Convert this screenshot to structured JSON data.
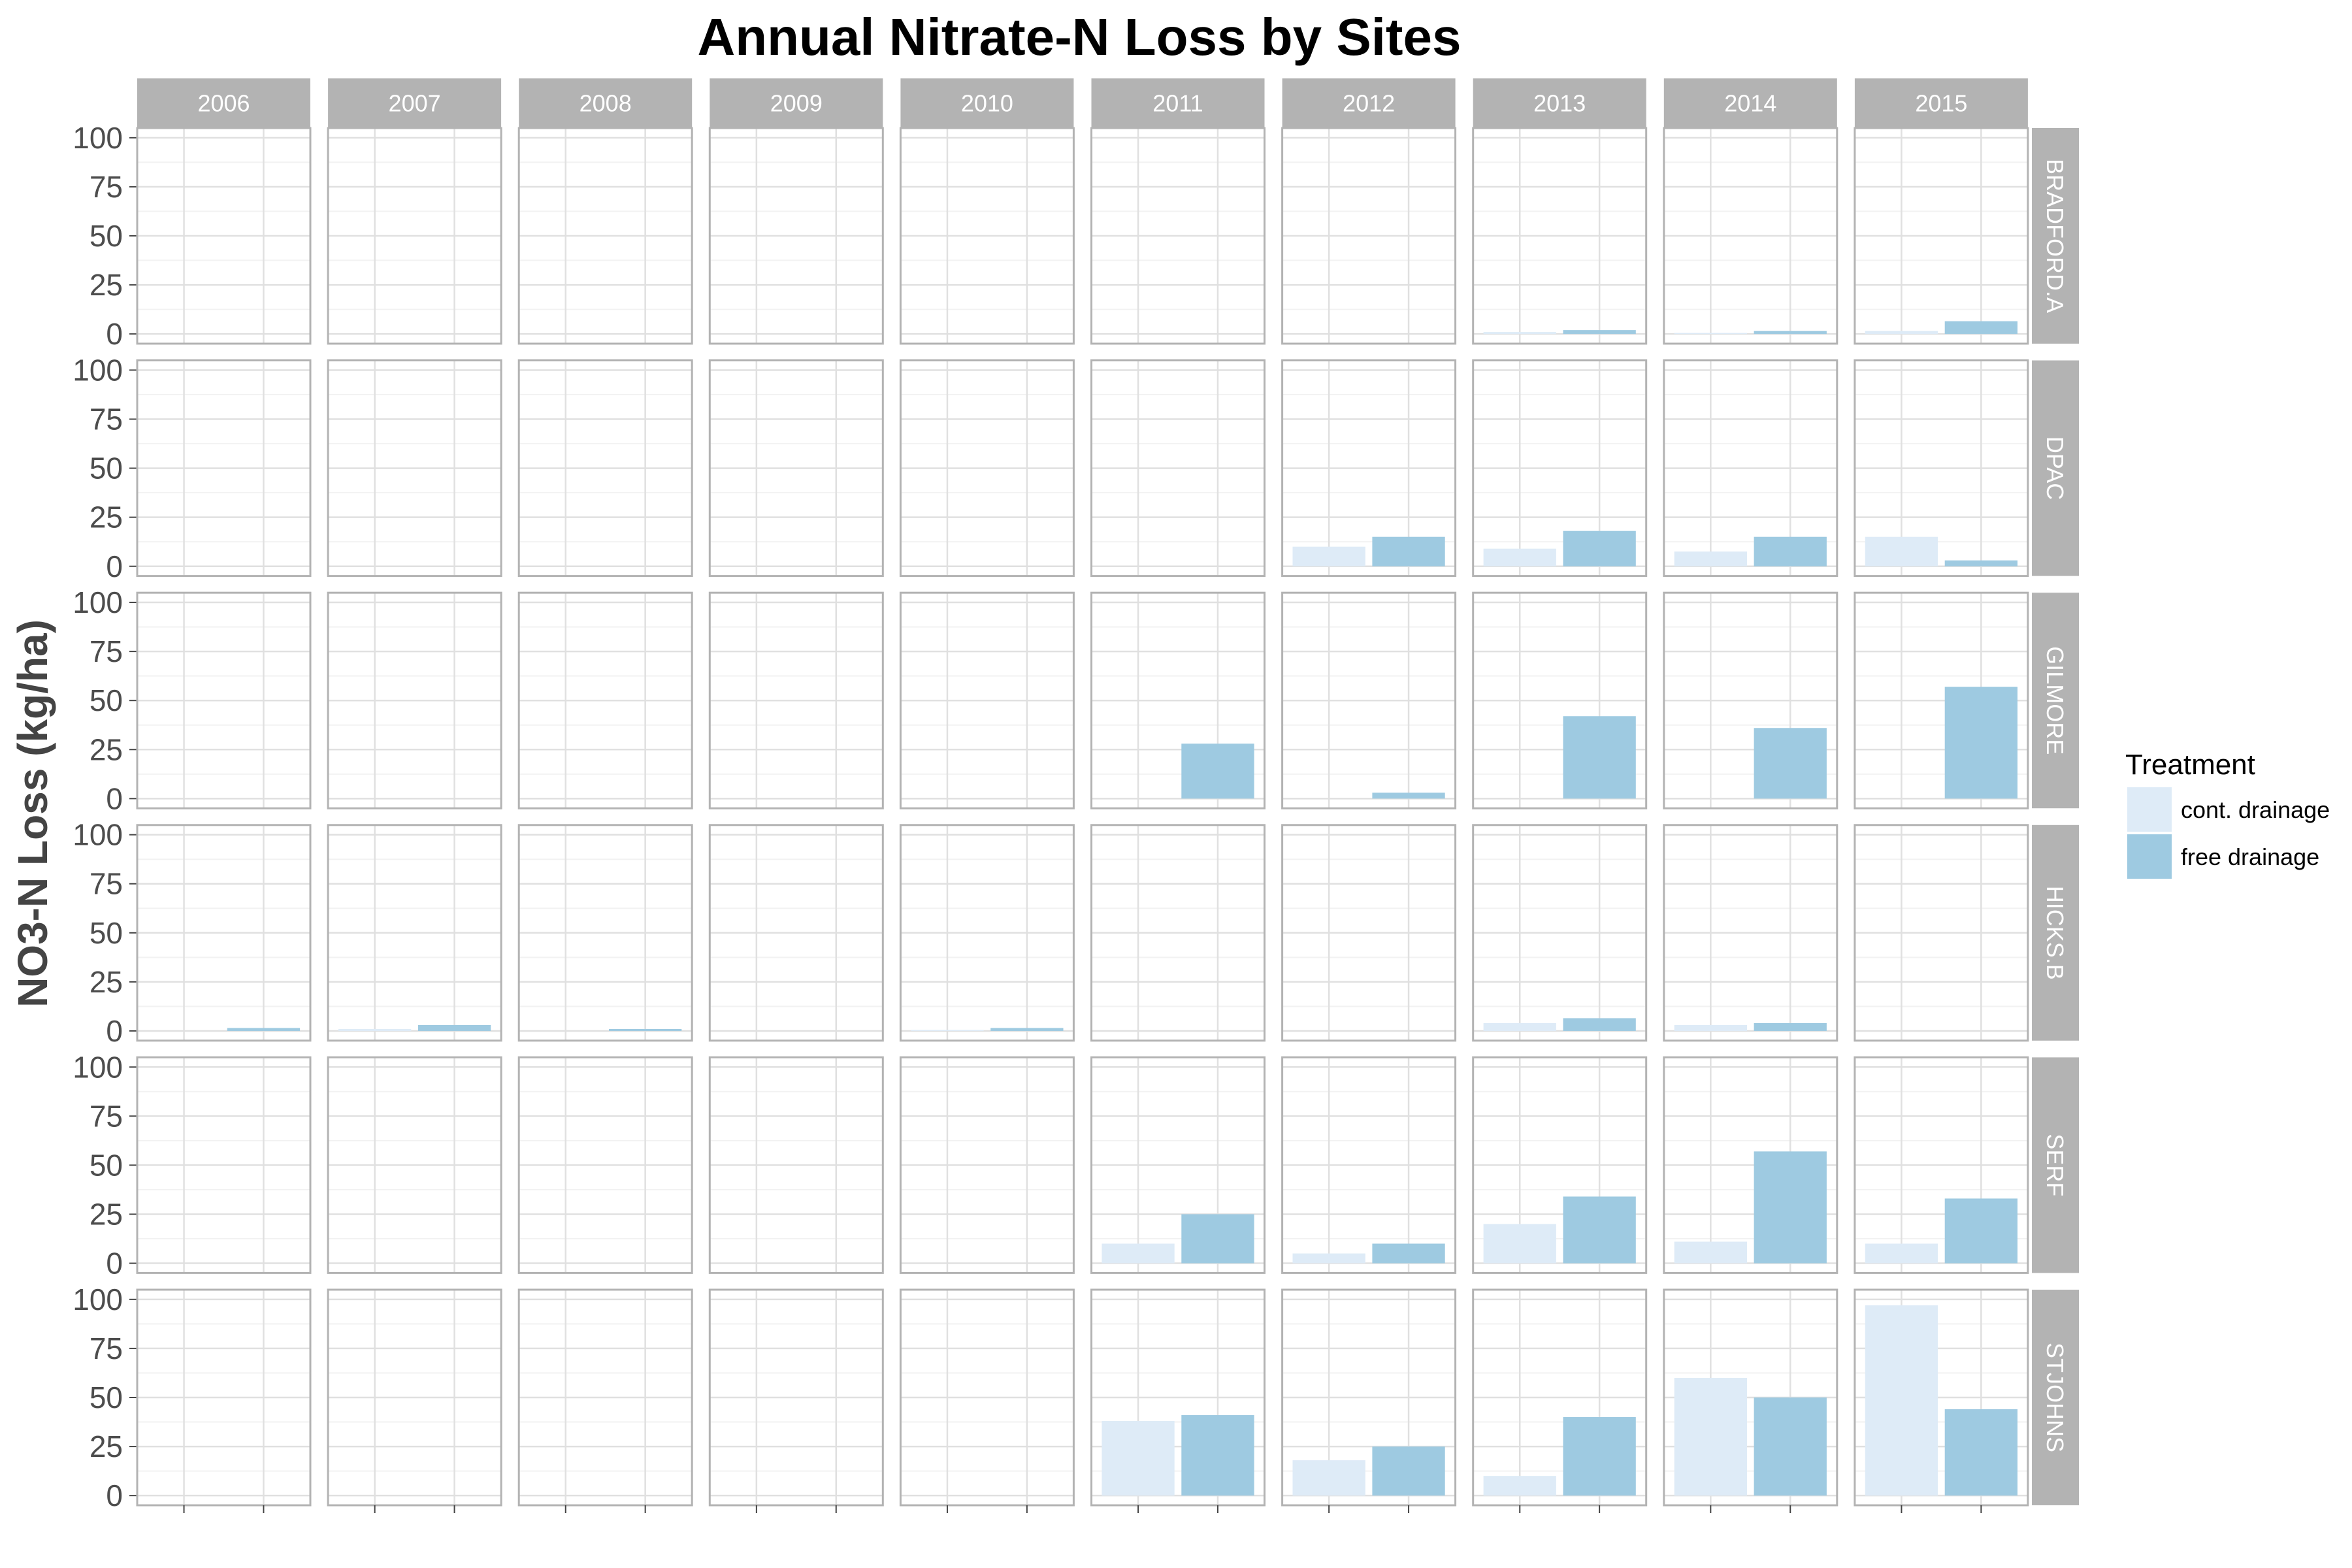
{
  "chart_data": {
    "type": "bar",
    "title": "Annual Nitrate-N Loss by Sites",
    "xlabel": "",
    "ylabel": "NO3-N Loss (kg/ha)",
    "ylim": [
      0,
      100
    ],
    "yticks": [
      "0",
      "25",
      "50",
      "75",
      "100"
    ],
    "grid": true,
    "legend_position": "right",
    "facet_columns": [
      "2006",
      "2007",
      "2008",
      "2009",
      "2010",
      "2011",
      "2012",
      "2013",
      "2014",
      "2015"
    ],
    "facet_rows": [
      "BRADFORD.A",
      "DPAC",
      "GILMORE",
      "HICKS.B",
      "SERF",
      "STJOHNS"
    ],
    "legend": {
      "title": "Treatment",
      "entries": [
        "cont. drainage",
        "free drainage"
      ],
      "colors": [
        "#deebf7",
        "#9ecae1"
      ]
    },
    "data": {
      "BRADFORD.A": [
        [
          null,
          null
        ],
        [
          null,
          null
        ],
        [
          null,
          null
        ],
        [
          null,
          null
        ],
        [
          null,
          null
        ],
        [
          null,
          null
        ],
        [
          null,
          null
        ],
        [
          1,
          2
        ],
        [
          0.5,
          1.5
        ],
        [
          1.5,
          6.5
        ]
      ],
      "DPAC": [
        [
          null,
          null
        ],
        [
          null,
          null
        ],
        [
          null,
          null
        ],
        [
          null,
          null
        ],
        [
          null,
          null
        ],
        [
          null,
          null
        ],
        [
          10,
          15
        ],
        [
          9,
          18
        ],
        [
          7.5,
          15
        ],
        [
          15,
          3
        ]
      ],
      "GILMORE": [
        [
          null,
          null
        ],
        [
          null,
          null
        ],
        [
          null,
          null
        ],
        [
          null,
          null
        ],
        [
          null,
          null
        ],
        [
          null,
          28
        ],
        [
          null,
          3
        ],
        [
          null,
          42
        ],
        [
          null,
          36
        ],
        [
          null,
          57
        ]
      ],
      "HICKS.B": [
        [
          null,
          1.5
        ],
        [
          1,
          3
        ],
        [
          null,
          1
        ],
        [
          null,
          null
        ],
        [
          0.5,
          1.5
        ],
        [
          null,
          null
        ],
        [
          null,
          null
        ],
        [
          4,
          6.5
        ],
        [
          3,
          4
        ],
        [
          null,
          null
        ]
      ],
      "SERF": [
        [
          null,
          null
        ],
        [
          null,
          null
        ],
        [
          null,
          null
        ],
        [
          null,
          null
        ],
        [
          null,
          null
        ],
        [
          10,
          25
        ],
        [
          5,
          10
        ],
        [
          20,
          34
        ],
        [
          11,
          57
        ],
        [
          10,
          33
        ]
      ],
      "STJOHNS": [
        [
          null,
          null
        ],
        [
          null,
          null
        ],
        [
          null,
          null
        ],
        [
          null,
          null
        ],
        [
          null,
          null
        ],
        [
          38,
          41
        ],
        [
          18,
          25
        ],
        [
          10,
          40
        ],
        [
          60,
          50
        ],
        [
          97,
          44
        ]
      ]
    }
  }
}
